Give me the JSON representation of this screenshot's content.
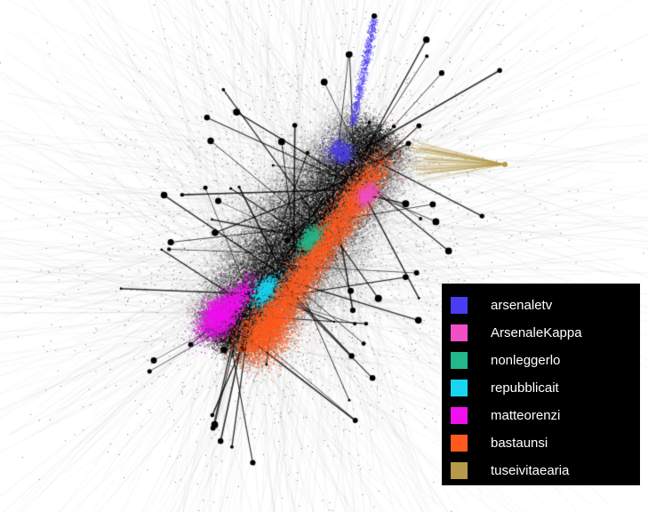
{
  "legend": {
    "items": [
      {
        "label": "arsenaletv",
        "color": "#4a3cf0"
      },
      {
        "label": "ArsenaleKappa",
        "color": "#f04fc6"
      },
      {
        "label": "nonleggerlo",
        "color": "#23b88c"
      },
      {
        "label": "repubblicait",
        "color": "#18d6f2"
      },
      {
        "label": "matteorenzi",
        "color": "#f010ee"
      },
      {
        "label": "bastaunsi",
        "color": "#ff5a1e"
      },
      {
        "label": "tuseivitaearia",
        "color": "#b59a4a"
      }
    ]
  },
  "network": {
    "background_color": "#ffffff",
    "node_color": "#000000",
    "edge_color": "#b9b9b9"
  }
}
